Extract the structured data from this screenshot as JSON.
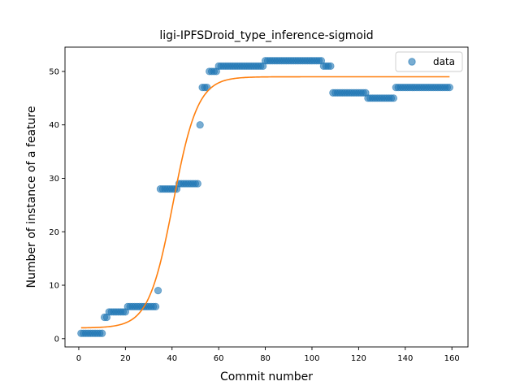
{
  "chart_data": {
    "type": "scatter",
    "title": "ligi-IPFSDroid_type_inference-sigmoid",
    "xlabel": "Commit number",
    "ylabel": "Number of instance of a feature",
    "xlim": [
      -5.9,
      166.9
    ],
    "ylim": [
      -1.55,
      54.55
    ],
    "xticks": [
      0,
      20,
      40,
      60,
      80,
      100,
      120,
      140,
      160
    ],
    "yticks": [
      0,
      10,
      20,
      30,
      40,
      50
    ],
    "grid": false,
    "legend": {
      "placement": "top-right",
      "entries": [
        "data"
      ]
    },
    "colors": {
      "data": "#1f77b4",
      "fit": "#ff7f0e"
    },
    "series": [
      {
        "name": "data",
        "kind": "scatter",
        "segments": [
          {
            "x_start": 1,
            "x_end": 10,
            "y": 1
          },
          {
            "x_start": 11,
            "x_end": 12,
            "y": 4
          },
          {
            "x_start": 13,
            "x_end": 20,
            "y": 5
          },
          {
            "x_start": 21,
            "x_end": 33,
            "y": 6
          },
          {
            "x_start": 34,
            "x_end": 34,
            "y": 9
          },
          {
            "x_start": 35,
            "x_end": 42,
            "y": 28
          },
          {
            "x_start": 43,
            "x_end": 51,
            "y": 29
          },
          {
            "x_start": 52,
            "x_end": 52,
            "y": 40
          },
          {
            "x_start": 53,
            "x_end": 55,
            "y": 47
          },
          {
            "x_start": 56,
            "x_end": 59,
            "y": 50
          },
          {
            "x_start": 60,
            "x_end": 79,
            "y": 51
          },
          {
            "x_start": 80,
            "x_end": 104,
            "y": 52
          },
          {
            "x_start": 105,
            "x_end": 108,
            "y": 51
          },
          {
            "x_start": 109,
            "x_end": 123,
            "y": 46
          },
          {
            "x_start": 124,
            "x_end": 135,
            "y": 45
          },
          {
            "x_start": 136,
            "x_end": 159,
            "y": 47
          }
        ]
      },
      {
        "name": "",
        "kind": "line",
        "model": "sigmoid",
        "L": 47,
        "k": 0.19,
        "x0": 40.5,
        "b": 2,
        "x_range": [
          1,
          159
        ]
      }
    ]
  }
}
